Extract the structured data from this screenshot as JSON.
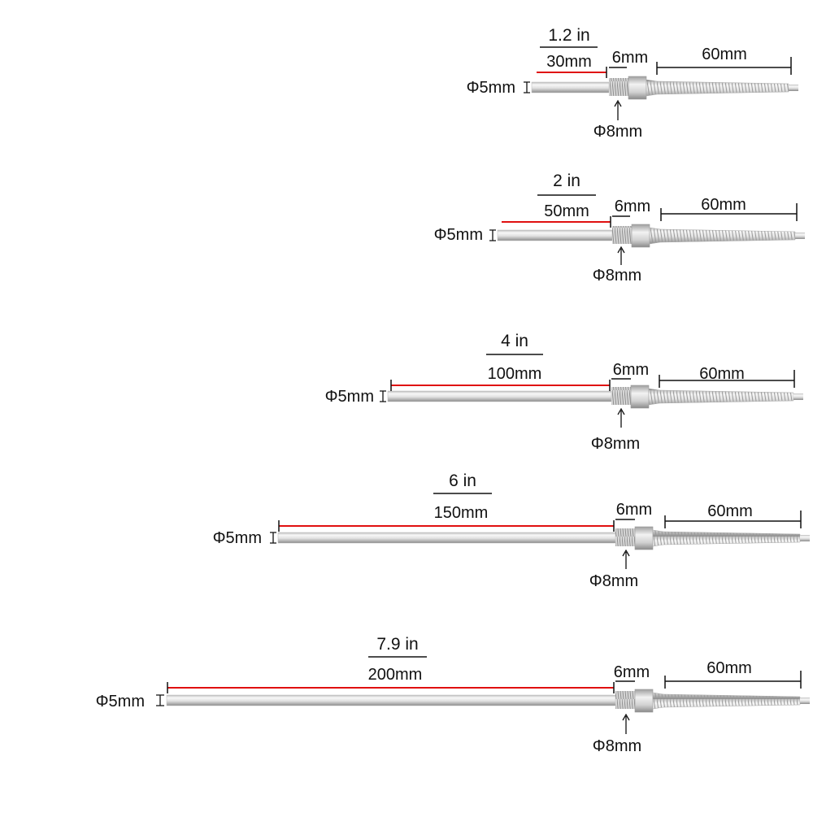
{
  "probes": [
    {
      "imperial": "1.2 in",
      "metric": "30mm",
      "dia_probe": "Φ5mm",
      "thread_len": "6mm",
      "dia_thread": "Φ8mm",
      "spring_len": "60mm",
      "length_mm": 30
    },
    {
      "imperial": "2 in",
      "metric": "50mm",
      "dia_probe": "Φ5mm",
      "thread_len": "6mm",
      "dia_thread": "Φ8mm",
      "spring_len": "60mm",
      "length_mm": 50
    },
    {
      "imperial": "4 in",
      "metric": "100mm",
      "dia_probe": "Φ5mm",
      "thread_len": "6mm",
      "dia_thread": "Φ8mm",
      "spring_len": "60mm",
      "length_mm": 100
    },
    {
      "imperial": "6 in",
      "metric": "150mm",
      "dia_probe": "Φ5mm",
      "thread_len": "6mm",
      "dia_thread": "Φ8mm",
      "spring_len": "60mm",
      "length_mm": 150
    },
    {
      "imperial": "7.9 in",
      "metric": "200mm",
      "dia_probe": "Φ5mm",
      "thread_len": "6mm",
      "dia_thread": "Φ8mm",
      "spring_len": "60mm",
      "length_mm": 200
    }
  ],
  "colors": {
    "dimension_line": "#e01010",
    "dimension_black": "#111111",
    "metal_light": "#f4f4f4",
    "metal_mid": "#cfcfcf",
    "metal_dark": "#9a9a9a"
  }
}
